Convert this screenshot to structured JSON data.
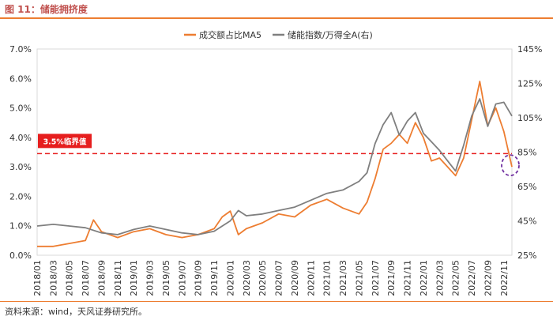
{
  "header": {
    "title": "图 11：储能拥挤度"
  },
  "footer": {
    "source": "资料来源：wind，天风证券研究所。"
  },
  "colors": {
    "accent": "#ed7d31",
    "title": "#c0504d",
    "series_index": "#7f7f7f",
    "threshold": "#e61e1e",
    "marker": "#7030a0"
  },
  "chart_data": {
    "type": "line",
    "x_tick_labels": [
      "2018/01",
      "2018/03",
      "2018/05",
      "2018/07",
      "2018/09",
      "2018/11",
      "2019/01",
      "2019/03",
      "2019/05",
      "2019/07",
      "2019/09",
      "2019/11",
      "2020/01",
      "2020/03",
      "2020/05",
      "2020/07",
      "2020/09",
      "2020/11",
      "2021/01",
      "2021/03",
      "2021/05",
      "2021/07",
      "2021/09",
      "2021/11",
      "2022/01",
      "2022/03",
      "2022/05",
      "2022/07",
      "2022/09",
      "2022/11"
    ],
    "left_axis": {
      "ylim": [
        0,
        7
      ],
      "ticks": [
        "0.0%",
        "1.0%",
        "2.0%",
        "3.0%",
        "4.0%",
        "5.0%",
        "6.0%",
        "7.0%"
      ]
    },
    "right_axis": {
      "ylim": [
        25,
        145
      ],
      "ticks": [
        "25%",
        "45%",
        "65%",
        "85%",
        "105%",
        "125%",
        "145%"
      ]
    },
    "legend": {
      "position": "top"
    },
    "series": [
      {
        "name": "成交额占比MA5",
        "axis": "left",
        "color": "#ed7d31",
        "x": [
          "2018/01",
          "2018/03",
          "2018/05",
          "2018/07",
          "2018/08",
          "2018/09",
          "2018/11",
          "2019/01",
          "2019/03",
          "2019/05",
          "2019/07",
          "2019/09",
          "2019/11",
          "2019/12",
          "2020/01",
          "2020/02",
          "2020/03",
          "2020/05",
          "2020/07",
          "2020/09",
          "2020/11",
          "2021/01",
          "2021/03",
          "2021/05",
          "2021/06",
          "2021/07",
          "2021/08",
          "2021/09",
          "2021/10",
          "2021/11",
          "2021/12",
          "2022/01",
          "2022/02",
          "2022/03",
          "2022/04",
          "2022/05",
          "2022/06",
          "2022/07",
          "2022/08",
          "2022/09",
          "2022/10",
          "2022/11",
          "2022/12"
        ],
        "values": [
          0.3,
          0.3,
          0.4,
          0.5,
          1.2,
          0.8,
          0.6,
          0.8,
          0.9,
          0.7,
          0.6,
          0.7,
          0.9,
          1.3,
          1.5,
          0.7,
          0.9,
          1.1,
          1.4,
          1.3,
          1.7,
          1.9,
          1.6,
          1.4,
          1.8,
          2.6,
          3.6,
          3.8,
          4.1,
          3.8,
          4.5,
          4.0,
          3.2,
          3.3,
          3.0,
          2.7,
          3.3,
          4.6,
          5.9,
          4.4,
          5.0,
          4.2,
          3.0
        ]
      },
      {
        "name": "储能指数/万得全A(右)",
        "axis": "right",
        "color": "#7f7f7f",
        "x": [
          "2018/01",
          "2018/03",
          "2018/05",
          "2018/07",
          "2018/09",
          "2018/11",
          "2019/01",
          "2019/03",
          "2019/05",
          "2019/07",
          "2019/09",
          "2019/11",
          "2020/01",
          "2020/02",
          "2020/03",
          "2020/05",
          "2020/07",
          "2020/09",
          "2020/11",
          "2021/01",
          "2021/03",
          "2021/05",
          "2021/06",
          "2021/07",
          "2021/08",
          "2021/09",
          "2021/10",
          "2021/11",
          "2021/12",
          "2022/01",
          "2022/02",
          "2022/03",
          "2022/04",
          "2022/05",
          "2022/06",
          "2022/07",
          "2022/08",
          "2022/09",
          "2022/10",
          "2022/11",
          "2022/12"
        ],
        "values": [
          42,
          43,
          42,
          41,
          38,
          37,
          40,
          42,
          40,
          38,
          37,
          39,
          45,
          51,
          48,
          49,
          51,
          53,
          57,
          61,
          63,
          68,
          73,
          90,
          101,
          108,
          95,
          103,
          108,
          96,
          91,
          86,
          80,
          74,
          89,
          106,
          116,
          100,
          113,
          114,
          106
        ]
      }
    ],
    "threshold": {
      "value": 3.45,
      "axis": "left",
      "label": "3.5%临界值",
      "color": "#e61e1e"
    },
    "annotation": {
      "type": "dashed-circle",
      "x": "2022/12",
      "value": 3.0,
      "color": "#7030a0"
    }
  }
}
